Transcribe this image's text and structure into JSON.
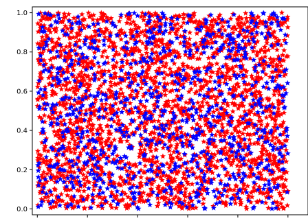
{
  "chart_data": {
    "type": "scatter",
    "title": "",
    "xlabel": "",
    "ylabel": "",
    "xlim": [
      0,
      1
    ],
    "ylim": [
      -0.03,
      1.03
    ],
    "grid": false,
    "legend": "none",
    "marker": "star",
    "y_ticks": [
      {
        "value": 0.0,
        "label": "0.0"
      },
      {
        "value": 0.2,
        "label": "0.2"
      },
      {
        "value": 0.4,
        "label": "0.4"
      },
      {
        "value": 0.6,
        "label": "0.6"
      },
      {
        "value": 0.8,
        "label": "0.8"
      },
      {
        "value": 1.0,
        "label": "1.0"
      }
    ],
    "x_tick_values": [
      0.0,
      0.2,
      0.4,
      0.6,
      0.8,
      1.0
    ],
    "series": [
      {
        "color": "#ff0000",
        "distribution": "uniform",
        "point_count": 2600,
        "x_range": [
          0.0,
          1.0
        ],
        "y_range": [
          0.0,
          1.0
        ]
      },
      {
        "color": "#0000ff",
        "distribution": "uniform",
        "point_count": 1000,
        "x_range": [
          0.0,
          1.0
        ],
        "y_range": [
          0.0,
          1.0
        ]
      }
    ]
  }
}
